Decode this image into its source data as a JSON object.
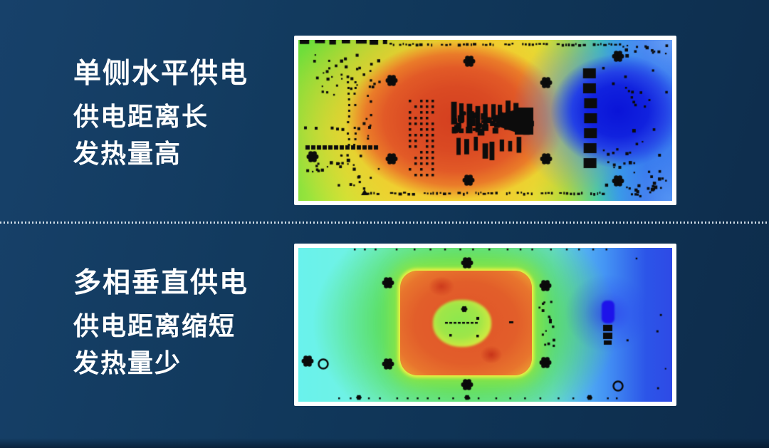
{
  "colors": {
    "background_start": "#17416a",
    "background_end": "#0d2c4b",
    "text": "#ffffff",
    "separator": "#dfe9f1",
    "panel_border": "#ffffff",
    "heat_hot": "#d43f1f",
    "heat_warm": "#ea7b29",
    "heat_mid": "#f0e838",
    "heat_cool": "#5ada52",
    "heat_cyan": "#69f2ec",
    "heat_cold": "#2b5fe9",
    "cold_core": "#0a14d8"
  },
  "sections": [
    {
      "title": "单侧水平供电",
      "line1": "供电距离长",
      "line2": "发热量高",
      "image_label": "单侧水平供电热力图"
    },
    {
      "title": "多相垂直供电",
      "line1": "供电距离缩短",
      "line2": "发热量少",
      "image_label": "多相垂直供电热力图"
    }
  ]
}
